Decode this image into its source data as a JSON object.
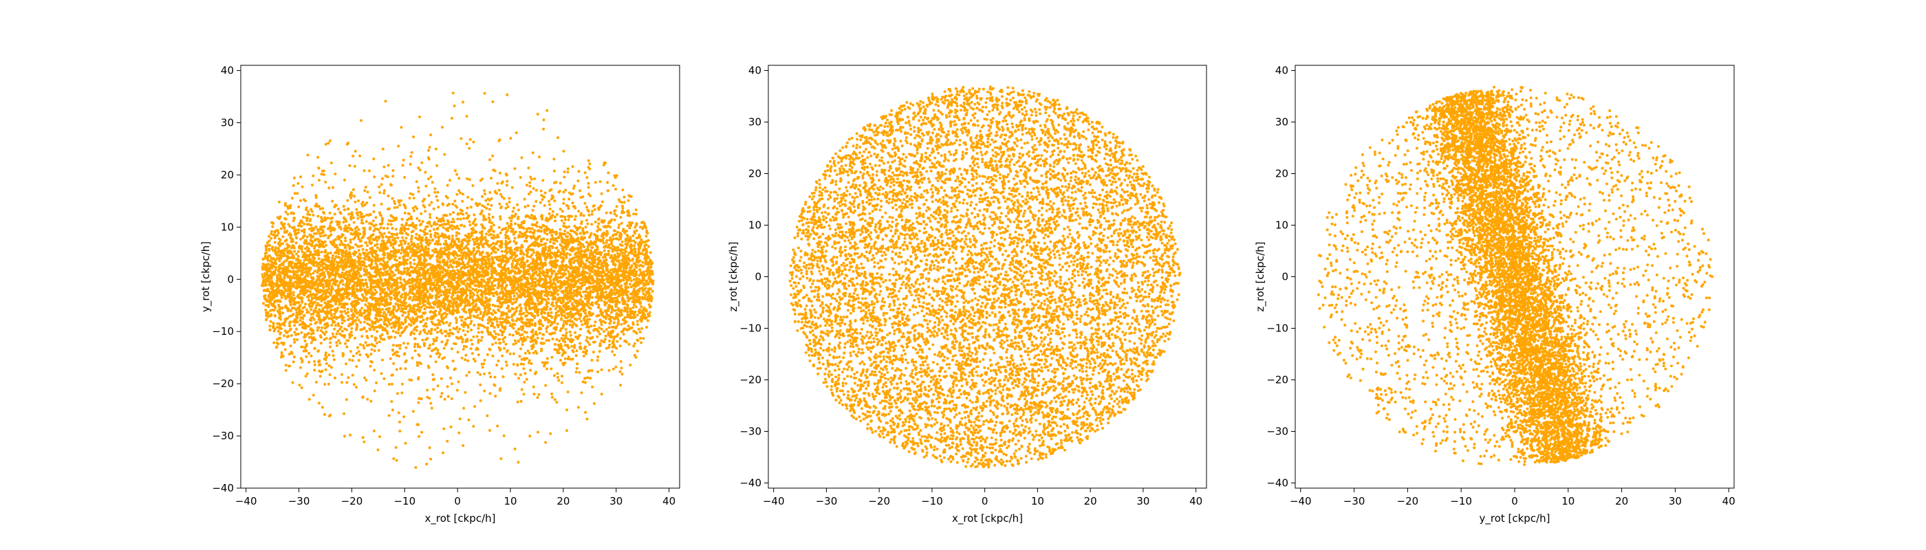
{
  "chart_data": [
    {
      "type": "scatter",
      "xlabel": "x_rot [ckpc/h]",
      "ylabel": "y_rot [ckpc/h]",
      "xlim": [
        -41,
        42
      ],
      "ylim": [
        -40,
        41
      ],
      "xticks": [
        -40,
        -30,
        -20,
        -10,
        0,
        10,
        20,
        30,
        40
      ],
      "yticks": [
        -40,
        -30,
        -20,
        -10,
        0,
        10,
        20,
        30,
        40
      ],
      "color": "#ffa500",
      "series": [
        {
          "distribution": "flattened disk, radius ~37, dense core |y| < ~12",
          "points": [
            [
              -37,
              0
            ],
            [
              -35,
              8
            ],
            [
              -35,
              -8
            ],
            [
              -30,
              15
            ],
            [
              -30,
              -15
            ],
            [
              -20,
              25
            ],
            [
              -20,
              -28
            ],
            [
              -10,
              30
            ],
            [
              -10,
              -30
            ],
            [
              0,
              35
            ],
            [
              0,
              -35
            ],
            [
              10,
              30
            ],
            [
              10,
              -30
            ],
            [
              20,
              25
            ],
            [
              20,
              -25
            ],
            [
              30,
              15
            ],
            [
              30,
              -15
            ],
            [
              36,
              5
            ],
            [
              36,
              -5
            ],
            [
              37,
              0
            ]
          ]
        }
      ]
    },
    {
      "type": "scatter",
      "xlabel": "x_rot [ckpc/h]",
      "ylabel": "z_rot [ckpc/h]",
      "xlim": [
        -41,
        42
      ],
      "ylim": [
        -41,
        41
      ],
      "xticks": [
        -40,
        -30,
        -20,
        -10,
        0,
        10,
        20,
        30,
        40
      ],
      "yticks": [
        -40,
        -30,
        -20,
        -10,
        0,
        10,
        20,
        30,
        40
      ],
      "color": "#ffa500",
      "series": [
        {
          "distribution": "filled circular disk, radius ~37",
          "points": [
            [
              -37,
              0
            ],
            [
              -30,
              20
            ],
            [
              -30,
              -20
            ],
            [
              -20,
              30
            ],
            [
              -20,
              -30
            ],
            [
              0,
              37
            ],
            [
              0,
              -37
            ],
            [
              20,
              30
            ],
            [
              20,
              -30
            ],
            [
              30,
              20
            ],
            [
              30,
              -20
            ],
            [
              37,
              0
            ]
          ]
        }
      ]
    },
    {
      "type": "scatter",
      "xlabel": "y_rot [ckpc/h]",
      "ylabel": "z_rot [ckpc/h]",
      "xlim": [
        -41,
        41
      ],
      "ylim": [
        -41,
        41
      ],
      "xticks": [
        -40,
        -30,
        -20,
        -10,
        0,
        10,
        20,
        30,
        40
      ],
      "yticks": [
        -40,
        -30,
        -20,
        -10,
        0,
        10,
        20,
        30,
        40
      ],
      "color": "#ffa500",
      "series": [
        {
          "distribution": "tilted elongated dense band within sparse circular halo, radius ~37",
          "points": [
            [
              -10,
              35
            ],
            [
              -5,
              36
            ],
            [
              0,
              20
            ],
            [
              5,
              0
            ],
            [
              8,
              -20
            ],
            [
              10,
              -35
            ],
            [
              -35,
              0
            ],
            [
              35,
              0
            ],
            [
              -20,
              30
            ],
            [
              20,
              -30
            ],
            [
              25,
              25
            ],
            [
              -25,
              -25
            ]
          ]
        }
      ]
    }
  ]
}
